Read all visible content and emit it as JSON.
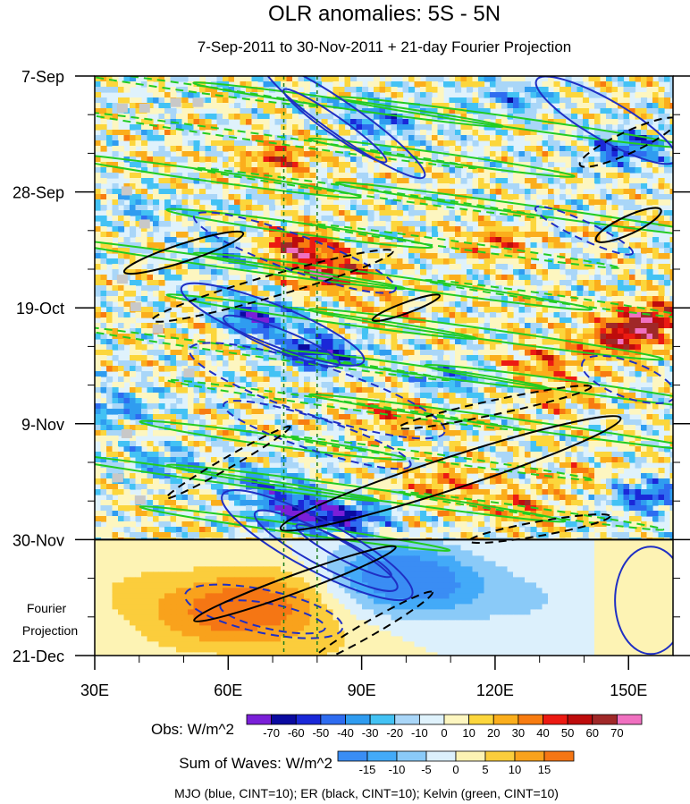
{
  "chart_data": {
    "type": "heatmap",
    "title": "OLR anomalies: 5S - 5N",
    "subtitle": "7-Sep-2011 to 30-Nov-2011 + 21-day Fourier Projection",
    "x_axis": {
      "range": [
        30,
        160
      ],
      "ticks": [
        {
          "value": 30,
          "label": "30E"
        },
        {
          "value": 60,
          "label": "60E"
        },
        {
          "value": 90,
          "label": "90E"
        },
        {
          "value": 120,
          "label": "120E"
        },
        {
          "value": 150,
          "label": "150E"
        }
      ]
    },
    "y_axis": {
      "range_days": [
        0,
        105
      ],
      "reversed": true,
      "ticks": [
        {
          "day": 0,
          "label": "7-Sep"
        },
        {
          "day": 21,
          "label": "28-Sep"
        },
        {
          "day": 42,
          "label": "19-Oct"
        },
        {
          "day": 63,
          "label": "9-Nov"
        },
        {
          "day": 84,
          "label": "30-Nov"
        },
        {
          "day": 105,
          "label": "21-Dec"
        }
      ]
    },
    "projection_boundary_day": 84,
    "projection_label": [
      "Fourier",
      "Projection"
    ],
    "reference_lines_lon": [
      72.5,
      80
    ],
    "obs_colorbar": {
      "label": "Obs: W/m^2",
      "levels": [
        -70,
        -60,
        -50,
        -40,
        -30,
        -20,
        -10,
        0,
        10,
        20,
        30,
        40,
        50,
        60,
        70
      ],
      "colors": [
        "#7a1fd8",
        "#0a0aa0",
        "#1a28d8",
        "#2e6cf0",
        "#2f9cf0",
        "#43c2f4",
        "#a9d6f8",
        "#dff2fc",
        "#fdf6c0",
        "#fcd63c",
        "#fbae1c",
        "#f87c10",
        "#ec1a12",
        "#be0c0c",
        "#a02828",
        "#f070c0"
      ]
    },
    "waves_colorbar": {
      "label": "Sum of Waves: W/m^2",
      "levels": [
        -15,
        -10,
        -5,
        0,
        5,
        10,
        15
      ],
      "colors": [
        "#3a8df4",
        "#43aaf8",
        "#8acaf8",
        "#dcf0fc",
        "#fdf3b4",
        "#fbcd3c",
        "#f9a21c",
        "#f57614"
      ]
    },
    "footer": "MJO (blue, CINT=10); ER (black, CINT=10); Kelvin (green, CINT=10)",
    "series": [
      {
        "name": "MJO",
        "color": "blue",
        "cint": 10
      },
      {
        "name": "ER",
        "color": "black",
        "cint": 10
      },
      {
        "name": "Kelvin",
        "color": "green",
        "cint": 10
      }
    ],
    "obs_anomaly_features": [
      {
        "lon": 72,
        "day": 15,
        "value": 40
      },
      {
        "lon": 75,
        "day": 31,
        "value": 60
      },
      {
        "lon": 83,
        "day": 36,
        "value": 50
      },
      {
        "lon": 65,
        "day": 44,
        "value": -60
      },
      {
        "lon": 80,
        "day": 50,
        "value": -60
      },
      {
        "lon": 98,
        "day": 61,
        "value": 30
      },
      {
        "lon": 120,
        "day": 30,
        "value": 30
      },
      {
        "lon": 155,
        "day": 44,
        "value": 60
      },
      {
        "lon": 148,
        "day": 48,
        "value": 50
      },
      {
        "lon": 150,
        "day": 13,
        "value": -50
      },
      {
        "lon": 95,
        "day": 8,
        "value": -40
      },
      {
        "lon": 125,
        "day": 4,
        "value": -30
      },
      {
        "lon": 60,
        "day": 32,
        "value": -30
      },
      {
        "lon": 55,
        "day": 46,
        "value": 20
      },
      {
        "lon": 95,
        "day": 42,
        "value": 20
      },
      {
        "lon": 68,
        "day": 74,
        "value": -40
      },
      {
        "lon": 76,
        "day": 79,
        "value": -60
      },
      {
        "lon": 88,
        "day": 80,
        "value": -50
      },
      {
        "lon": 45,
        "day": 70,
        "value": -30
      },
      {
        "lon": 108,
        "day": 74,
        "value": 30
      },
      {
        "lon": 125,
        "day": 78,
        "value": 30
      },
      {
        "lon": 140,
        "day": 73,
        "value": 20
      },
      {
        "lon": 110,
        "day": 55,
        "value": -30
      },
      {
        "lon": 135,
        "day": 58,
        "value": 20
      },
      {
        "lon": 154,
        "day": 76,
        "value": -50
      },
      {
        "lon": 35,
        "day": 60,
        "value": -30
      },
      {
        "lon": 40,
        "day": 24,
        "value": -20
      },
      {
        "lon": 130,
        "day": 52,
        "value": 30
      }
    ],
    "waves_projection_features": [
      {
        "lon": 68,
        "day": 95,
        "value": 15
      },
      {
        "lon": 55,
        "day": 99,
        "value": 10
      },
      {
        "lon": 97,
        "day": 90,
        "value": -15
      },
      {
        "lon": 105,
        "day": 93,
        "value": -10
      },
      {
        "lon": 130,
        "day": 95,
        "value": -5
      },
      {
        "lon": 80,
        "day": 103,
        "value": 5
      },
      {
        "lon": 40,
        "day": 93,
        "value": 5
      },
      {
        "lon": 155,
        "day": 95,
        "value": 5
      }
    ]
  }
}
